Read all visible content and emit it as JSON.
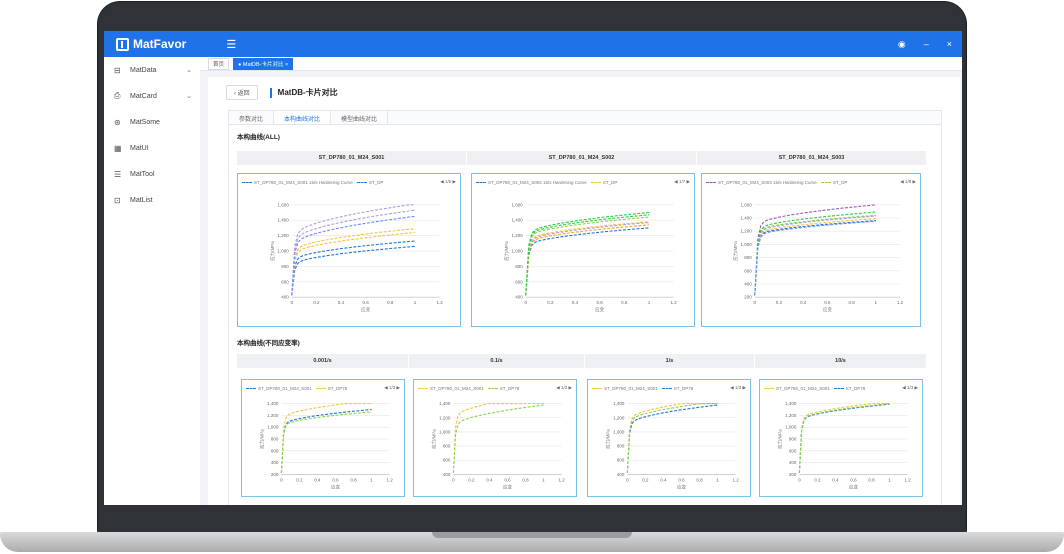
{
  "app": {
    "name": "MatFavor",
    "menu_toggle": "☰"
  },
  "topbar": {
    "user_icon": "user-icon",
    "min": "–",
    "close": "×"
  },
  "sidebar": {
    "items": [
      {
        "label": "MatData",
        "icon": "⊟",
        "chev": "⌄"
      },
      {
        "label": "MatCard",
        "icon": "⎙",
        "chev": "⌄"
      },
      {
        "label": "MatSome",
        "icon": "⊛",
        "chev": ""
      },
      {
        "label": "MatUI",
        "icon": "▦",
        "chev": ""
      },
      {
        "label": "MatTool",
        "icon": "☰",
        "chev": ""
      },
      {
        "label": "MatList",
        "icon": "⊡",
        "chev": ""
      }
    ]
  },
  "tabs": [
    {
      "label": "首页"
    },
    {
      "label": "● MatDB-卡片对比 ×"
    }
  ],
  "header": {
    "back": "‹ 返回",
    "title": "MatDB-卡片对比"
  },
  "panel_tabs": [
    {
      "label": "参数对比"
    },
    {
      "label": "本构曲线对比"
    },
    {
      "label": "模型曲线对比"
    }
  ],
  "sections": {
    "all": "本构曲线(ALL)",
    "rate": "本构曲线(不同应变率)"
  },
  "top_titles": [
    "ST_DP780_01_M24_S001",
    "ST_DP780_01_M24_S002",
    "ST_DP780_01_M24_S003"
  ],
  "conditions": [
    "0.001/s",
    "0.1/s",
    "1/s",
    "10/s"
  ],
  "colors": [
    "#1f77d4",
    "#f6c343",
    "#8fd14f",
    "#b39ddb",
    "#6b8cff",
    "#2ecc40",
    "#f5a623",
    "#9b59b6"
  ],
  "chart_data": [
    {
      "type": "line",
      "legend": [
        "ST_DP780_01_M24_S001 15/s Hardening Curve",
        "ST_DP"
      ],
      "pager": "1/5",
      "ylabel": "应力/MPa",
      "xlabel": "应变",
      "ylim": [
        400,
        1600
      ],
      "yticks": [
        "1,600",
        "1,400",
        "1,200",
        "1,000",
        "800",
        "600",
        "400"
      ],
      "xticks": [
        "0",
        "0.2",
        "0.4",
        "0.6",
        "0.8",
        "1",
        "1.2"
      ],
      "series": [
        {
          "c": 0,
          "a": 800,
          "b": 260
        },
        {
          "c": 0,
          "a": 860,
          "b": 270
        },
        {
          "c": 1,
          "a": 940,
          "b": 300
        },
        {
          "c": 1,
          "a": 980,
          "b": 310
        },
        {
          "c": 3,
          "a": 1100,
          "b": 430
        },
        {
          "c": 3,
          "a": 1160,
          "b": 450
        },
        {
          "c": 4,
          "a": 1050,
          "b": 400
        }
      ]
    },
    {
      "type": "line",
      "legend": [
        "ST_DP780_01_M24_S002 15/s Hardening Curve",
        "ST_DP"
      ],
      "pager": "1/7",
      "ylabel": "应力/MPa",
      "xlabel": "应变",
      "ylim": [
        400,
        1600
      ],
      "yticks": [
        "1,600",
        "1,400",
        "1,200",
        "1,000",
        "800",
        "600",
        "400"
      ],
      "xticks": [
        "0",
        "0.2",
        "0.4",
        "0.6",
        "0.8",
        "1",
        "1.2"
      ],
      "series": [
        {
          "c": 0,
          "a": 1050,
          "b": 250
        },
        {
          "c": 1,
          "a": 1120,
          "b": 260
        },
        {
          "c": 2,
          "a": 1160,
          "b": 280
        },
        {
          "c": 5,
          "a": 1200,
          "b": 300
        },
        {
          "c": 3,
          "a": 1100,
          "b": 270
        },
        {
          "c": 6,
          "a": 1080,
          "b": 260
        },
        {
          "c": 5,
          "a": 1180,
          "b": 290
        }
      ]
    },
    {
      "type": "line",
      "legend": [
        "ST_DP780_01_M24_S003 15/s Hardening Curve",
        "ST_DP"
      ],
      "pager": "1/8",
      "ylabel": "应力/MPa",
      "xlabel": "应变",
      "ylim": [
        200,
        1600
      ],
      "yticks": [
        "1,600",
        "1,400",
        "1,200",
        "1,000",
        "800",
        "600",
        "400",
        "200"
      ],
      "xticks": [
        "0",
        "0.2",
        "0.4",
        "0.6",
        "0.8",
        "1",
        "1.2"
      ],
      "series": [
        {
          "c": 7,
          "a": 1260,
          "b": 340
        },
        {
          "c": 2,
          "a": 1180,
          "b": 260
        },
        {
          "c": 0,
          "a": 1120,
          "b": 240
        },
        {
          "c": 1,
          "a": 1140,
          "b": 250
        },
        {
          "c": 3,
          "a": 1160,
          "b": 270
        },
        {
          "c": 5,
          "a": 1200,
          "b": 290
        },
        {
          "c": 4,
          "a": 1100,
          "b": 250
        }
      ]
    },
    {
      "type": "line",
      "legend": [
        "ST_DP780_01_M24_S001",
        "ST_DP78"
      ],
      "pager": "1/3",
      "ylabel": "应力/MPa",
      "xlabel": "应变",
      "ylim": [
        200,
        1400
      ],
      "yticks": [
        "1,400",
        "1,200",
        "1,000",
        "800",
        "600",
        "400",
        "200"
      ],
      "xticks": [
        "0",
        "0.2",
        "0.4",
        "0.6",
        "0.8",
        "1",
        "1.2"
      ],
      "series": [
        {
          "c": 0,
          "a": 1020,
          "b": 280
        },
        {
          "c": 1,
          "a": 1130,
          "b": 320
        },
        {
          "c": 2,
          "a": 1000,
          "b": 260
        }
      ]
    },
    {
      "type": "line",
      "legend": [
        "ST_DP780_01_M24_S001",
        "ST_DP78"
      ],
      "pager": "1/2",
      "ylabel": "应力/MPa",
      "xlabel": "应变",
      "ylim": [
        400,
        1400
      ],
      "yticks": [
        "1,400",
        "1,200",
        "1,000",
        "800",
        "600",
        "400"
      ],
      "xticks": [
        "0",
        "0.2",
        "0.4",
        "0.6",
        "0.8",
        "1",
        "1.2"
      ],
      "series": [
        {
          "c": 1,
          "a": 1180,
          "b": 350
        },
        {
          "c": 2,
          "a": 1060,
          "b": 320
        }
      ]
    },
    {
      "type": "line",
      "legend": [
        "ST_DP780_01_M24_S001",
        "ST_DP78"
      ],
      "pager": "1/3",
      "ylabel": "应力/MPa",
      "xlabel": "应变",
      "ylim": [
        400,
        1400
      ],
      "yticks": [
        "1,400",
        "1,200",
        "1,000",
        "800",
        "600",
        "400"
      ],
      "xticks": [
        "0",
        "0.2",
        "0.4",
        "0.6",
        "0.8",
        "1",
        "1.2"
      ],
      "series": [
        {
          "c": 1,
          "a": 1150,
          "b": 320
        },
        {
          "c": 0,
          "a": 1080,
          "b": 300
        },
        {
          "c": 2,
          "a": 1120,
          "b": 310
        }
      ]
    },
    {
      "type": "line",
      "legend": [
        "ST_DP780_01_M24_S001",
        "ST_DP78"
      ],
      "pager": "1/3",
      "ylabel": "应力/MPa",
      "xlabel": "应变",
      "ylim": [
        200,
        1400
      ],
      "yticks": [
        "1,400",
        "1,200",
        "1,000",
        "800",
        "600",
        "400",
        "200"
      ],
      "xticks": [
        "0",
        "0.2",
        "0.4",
        "0.6",
        "0.8",
        "1",
        "1.2"
      ],
      "series": [
        {
          "c": 1,
          "a": 1120,
          "b": 310
        },
        {
          "c": 0,
          "a": 1090,
          "b": 300
        },
        {
          "c": 2,
          "a": 1100,
          "b": 300
        }
      ]
    }
  ]
}
